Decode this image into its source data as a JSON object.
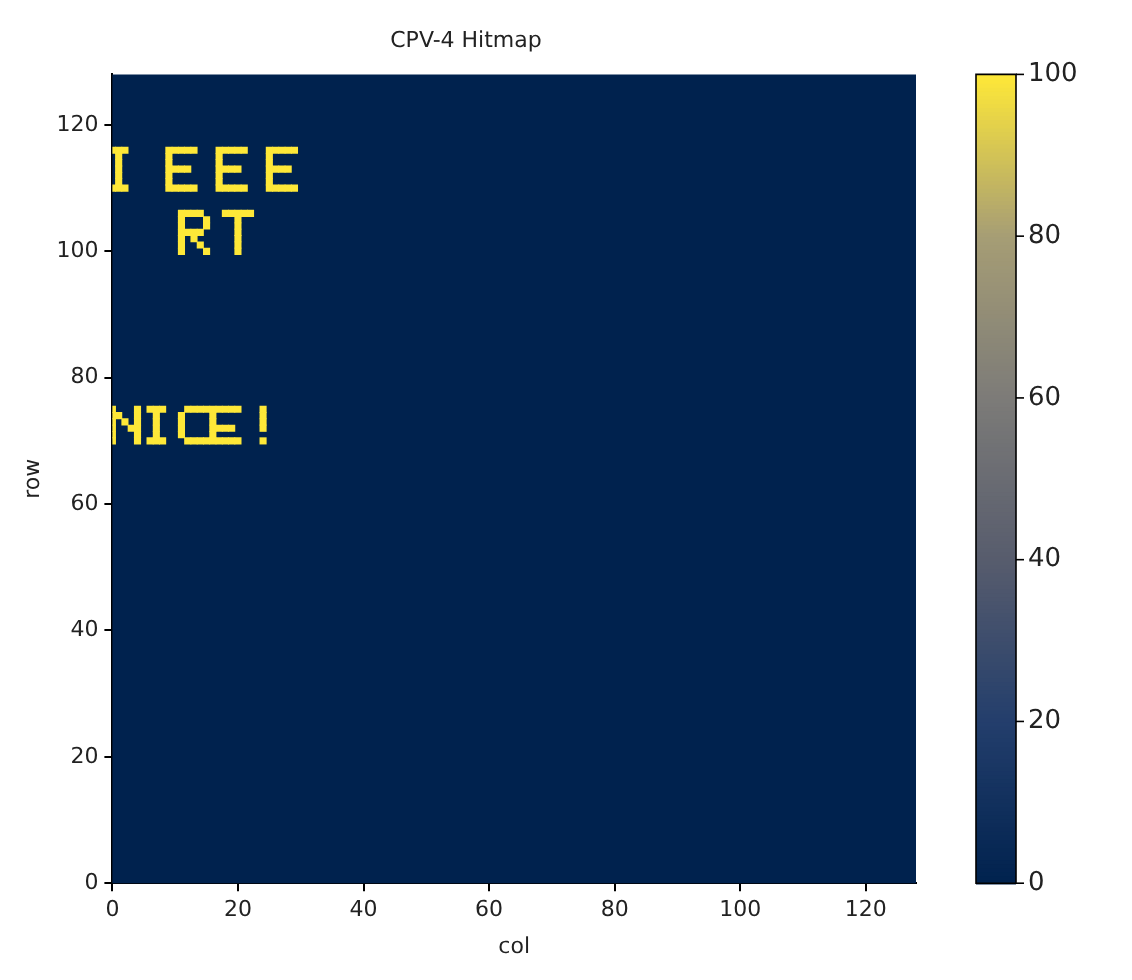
{
  "chart_data": {
    "type": "scatter",
    "title": "CPV-4 Hitmap",
    "xlabel": "col",
    "ylabel": "row",
    "xlim": [
      0,
      128
    ],
    "ylim": [
      0,
      128
    ],
    "xticks": [
      0,
      20,
      40,
      60,
      80,
      100,
      120
    ],
    "yticks": [
      0,
      20,
      40,
      60,
      80,
      100,
      120
    ],
    "clim": [
      0,
      100
    ],
    "cticks": [
      0,
      20,
      40,
      60,
      80,
      100
    ],
    "marker": "square",
    "grid": false,
    "legend": false,
    "series": [
      {
        "x": [
          0,
          1,
          2,
          1,
          1,
          1,
          1,
          1,
          0,
          1,
          2
        ],
        "values": [
          116,
          116,
          116,
          115,
          114,
          113,
          112,
          111,
          110,
          110,
          110
        ],
        "cvalues": [
          100,
          100,
          100,
          100,
          100,
          100,
          100,
          100,
          100,
          100,
          100
        ]
      },
      {
        "x": [
          9,
          9,
          9,
          9,
          9,
          9,
          9,
          10,
          11,
          12,
          13,
          10,
          11,
          12,
          10,
          11,
          12,
          13
        ],
        "values": [
          110,
          111,
          112,
          113,
          114,
          115,
          116,
          116,
          116,
          116,
          116,
          113,
          113,
          113,
          110,
          110,
          110,
          110
        ],
        "cvalues": [
          100,
          100,
          100,
          100,
          100,
          100,
          100,
          100,
          100,
          100,
          100,
          100,
          100,
          100,
          100,
          100,
          100,
          100
        ]
      },
      {
        "x": [
          17,
          17,
          17,
          17,
          17,
          17,
          17,
          18,
          19,
          20,
          21,
          18,
          19,
          20,
          18,
          19,
          20,
          21
        ],
        "values": [
          110,
          111,
          112,
          113,
          114,
          115,
          116,
          116,
          116,
          116,
          116,
          113,
          113,
          113,
          110,
          110,
          110,
          110
        ],
        "cvalues": [
          100,
          100,
          100,
          100,
          100,
          100,
          100,
          100,
          100,
          100,
          100,
          100,
          100,
          100,
          100,
          100,
          100,
          100
        ]
      },
      {
        "x": [
          25,
          25,
          25,
          25,
          25,
          25,
          25,
          26,
          27,
          28,
          29,
          26,
          27,
          28,
          26,
          27,
          28,
          29
        ],
        "values": [
          110,
          111,
          112,
          113,
          114,
          115,
          116,
          116,
          116,
          116,
          116,
          113,
          113,
          113,
          110,
          110,
          110,
          110
        ],
        "cvalues": [
          100,
          100,
          100,
          100,
          100,
          100,
          100,
          100,
          100,
          100,
          100,
          100,
          100,
          100,
          100,
          100,
          100,
          100
        ]
      },
      {
        "x": [
          11,
          11,
          11,
          11,
          11,
          11,
          11,
          12,
          13,
          14,
          15,
          15,
          12,
          13,
          14,
          13,
          14,
          15
        ],
        "values": [
          100,
          101,
          102,
          103,
          104,
          105,
          106,
          106,
          106,
          106,
          105,
          104,
          103,
          103,
          103,
          102,
          101,
          100
        ],
        "cvalues": [
          100,
          100,
          100,
          100,
          100,
          100,
          100,
          100,
          100,
          100,
          100,
          100,
          100,
          100,
          100,
          100,
          100,
          100
        ]
      },
      {
        "x": [
          18,
          19,
          20,
          21,
          22,
          20,
          20,
          20,
          20,
          20,
          20
        ],
        "values": [
          106,
          106,
          106,
          106,
          106,
          100,
          101,
          102,
          103,
          104,
          105
        ],
        "cvalues": [
          100,
          100,
          100,
          100,
          100,
          100,
          100,
          100,
          100,
          100,
          100
        ]
      },
      {
        "x": [
          0,
          0,
          0,
          0,
          0,
          0,
          4,
          4,
          4,
          4,
          4,
          4,
          1,
          2,
          3
        ],
        "values": [
          70,
          71,
          72,
          73,
          74,
          75,
          70,
          71,
          72,
          73,
          74,
          75,
          74,
          73,
          72
        ],
        "cvalues": [
          100,
          100,
          100,
          100,
          100,
          100,
          100,
          100,
          100,
          100,
          100,
          100,
          100,
          100,
          100
        ]
      },
      {
        "x": [
          6,
          7,
          8,
          7,
          7,
          7,
          7,
          6,
          7,
          8
        ],
        "values": [
          75,
          75,
          75,
          74,
          73,
          72,
          71,
          70,
          70,
          70
        ],
        "cvalues": [
          100,
          100,
          100,
          100,
          100,
          100,
          100,
          100,
          100,
          100
        ]
      },
      {
        "x": [
          11,
          11,
          11,
          11,
          12,
          13,
          14,
          15,
          12,
          13,
          14,
          15
        ],
        "values": [
          71,
          72,
          73,
          74,
          75,
          75,
          75,
          75,
          70,
          70,
          70,
          70
        ],
        "cvalues": [
          100,
          100,
          100,
          100,
          100,
          100,
          100,
          100,
          100,
          100,
          100,
          100
        ]
      },
      {
        "x": [
          16,
          16,
          16,
          16,
          16,
          16,
          17,
          18,
          19,
          20,
          17,
          18,
          19,
          17,
          18,
          19,
          20
        ],
        "values": [
          70,
          71,
          72,
          73,
          74,
          75,
          75,
          75,
          75,
          75,
          72,
          72,
          72,
          70,
          70,
          70,
          70
        ],
        "cvalues": [
          100,
          100,
          100,
          100,
          100,
          100,
          100,
          100,
          100,
          100,
          100,
          100,
          100,
          100,
          100,
          100,
          100
        ]
      },
      {
        "x": [
          24,
          24,
          24,
          24,
          24
        ],
        "values": [
          72,
          73,
          74,
          75,
          70
        ],
        "cvalues": [
          100,
          100,
          100,
          100,
          100
        ]
      }
    ]
  }
}
